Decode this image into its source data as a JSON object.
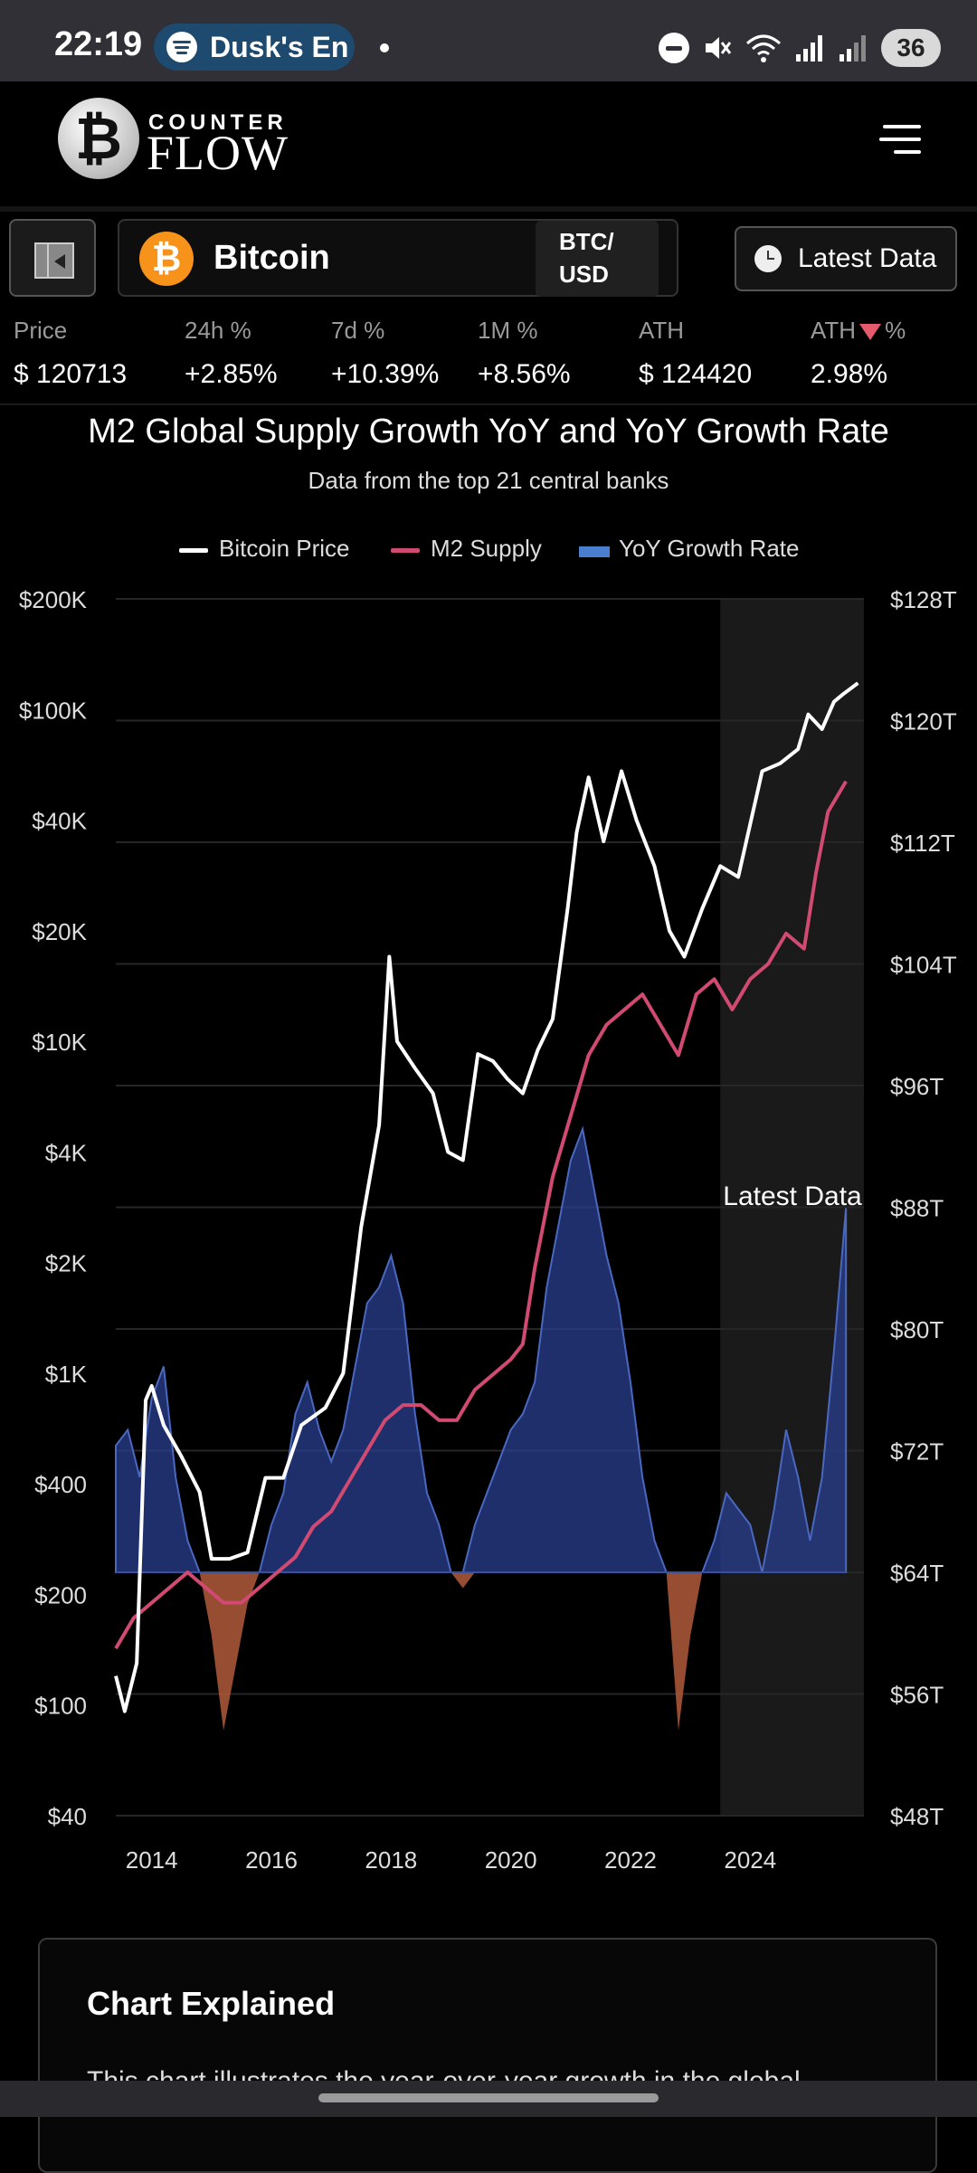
{
  "status_bar": {
    "time": "22:19",
    "media_title": "Dusk's En",
    "battery": "36"
  },
  "header": {
    "logo_top": "COUNTER",
    "logo_bottom": "FLOW",
    "logo_coin_symbol": "₿"
  },
  "toolbar": {
    "asset_symbol": "₿",
    "asset_name": "Bitcoin",
    "pair_line1": "BTC/",
    "pair_line2": "USD",
    "latest_button": "Latest Data"
  },
  "stats": [
    {
      "label": "Price",
      "value": "$ 120713"
    },
    {
      "label": "24h %",
      "value": "+2.85%"
    },
    {
      "label": "7d %",
      "value": "+10.39%"
    },
    {
      "label": "1M %",
      "value": "+8.56%"
    },
    {
      "label": "ATH",
      "value": "$ 124420"
    },
    {
      "label_prefix": "ATH",
      "label_suffix": "%",
      "value": "2.98%"
    }
  ],
  "colors": {
    "bitcoin_line": "#ffffff",
    "m2_line": "#d04a72",
    "growth_positive": "#2a3f8f",
    "growth_negative": "#b05a3a",
    "latest_shade": "#1a1a1a",
    "bitcoin_orange": "#f7931a"
  },
  "chart_data": {
    "type": "line",
    "title": "M2 Global Supply Growth YoY and YoY Growth Rate",
    "subtitle": "Data from the top 21 central banks",
    "legend": [
      "Bitcoin Price",
      "M2 Supply",
      "YoY Growth Rate"
    ],
    "annotation": "Latest Data",
    "x_ticks": [
      "2014",
      "2016",
      "2018",
      "2020",
      "2022",
      "2024"
    ],
    "xlim": [
      2013.4,
      2025.9
    ],
    "left_axis": {
      "scale": "log",
      "ticks": [
        "$200K",
        "$100K",
        "$40K",
        "$20K",
        "$10K",
        "$4K",
        "$2K",
        "$1K",
        "$400",
        "$200",
        "$100",
        "$40"
      ]
    },
    "right_axis": {
      "ticks": [
        "$128T",
        "$120T",
        "$112T",
        "$104T",
        "$96T",
        "$88T",
        "$80T",
        "$72T",
        "$64T",
        "$56T",
        "$48T"
      ],
      "ylim": [
        48,
        128
      ]
    },
    "latest_data_range": [
      2023.5,
      2025.9
    ],
    "series": [
      {
        "name": "Bitcoin Price",
        "x": [
          2013.4,
          2013.55,
          2013.75,
          2013.9,
          2014.0,
          2014.2,
          2014.5,
          2014.8,
          2015.0,
          2015.3,
          2015.6,
          2015.9,
          2016.2,
          2016.5,
          2016.9,
          2017.2,
          2017.5,
          2017.8,
          2017.97,
          2018.1,
          2018.4,
          2018.7,
          2018.95,
          2019.2,
          2019.45,
          2019.7,
          2019.95,
          2020.2,
          2020.45,
          2020.7,
          2020.95,
          2021.1,
          2021.3,
          2021.55,
          2021.85,
          2022.1,
          2022.4,
          2022.65,
          2022.9,
          2023.2,
          2023.5,
          2023.8,
          2024.2,
          2024.5,
          2024.8,
          2024.97,
          2025.2,
          2025.4,
          2025.55,
          2025.8
        ],
        "values": [
          120,
          95,
          130,
          800,
          900,
          650,
          500,
          380,
          250,
          250,
          260,
          420,
          420,
          650,
          750,
          1000,
          2500,
          5000,
          17000,
          10000,
          8000,
          6500,
          4000,
          3800,
          9000,
          8500,
          7300,
          6500,
          9300,
          11500,
          23000,
          37000,
          57000,
          35000,
          60000,
          40000,
          30000,
          20000,
          17000,
          23000,
          30000,
          28000,
          60000,
          64000,
          72000,
          96000,
          85000,
          105000,
          110000,
          118000
        ]
      },
      {
        "name": "M2 Supply",
        "x": [
          2013.4,
          2013.7,
          2014.0,
          2014.3,
          2014.6,
          2014.9,
          2015.2,
          2015.5,
          2015.8,
          2016.1,
          2016.4,
          2016.7,
          2017.0,
          2017.3,
          2017.6,
          2017.9,
          2018.2,
          2018.5,
          2018.8,
          2019.1,
          2019.4,
          2019.7,
          2020.0,
          2020.2,
          2020.4,
          2020.7,
          2021.0,
          2021.3,
          2021.6,
          2021.9,
          2022.2,
          2022.5,
          2022.8,
          2023.1,
          2023.4,
          2023.7,
          2024.0,
          2024.3,
          2024.6,
          2024.9,
          2025.1,
          2025.3,
          2025.6
        ],
        "values": [
          59,
          61,
          62,
          63,
          64,
          63,
          62,
          62,
          63,
          64,
          65,
          67,
          68,
          70,
          72,
          74,
          75,
          75,
          74,
          74,
          76,
          77,
          78,
          79,
          84,
          90,
          94,
          98,
          100,
          101,
          102,
          100,
          98,
          102,
          103,
          101,
          103,
          104,
          106,
          105,
          110,
          114,
          116
        ]
      },
      {
        "name": "YoY Growth Rate",
        "x": [
          2013.4,
          2013.6,
          2013.8,
          2014.0,
          2014.2,
          2014.4,
          2014.6,
          2014.8,
          2015.0,
          2015.2,
          2015.4,
          2015.6,
          2015.8,
          2016.0,
          2016.2,
          2016.4,
          2016.6,
          2016.8,
          2017.0,
          2017.2,
          2017.4,
          2017.6,
          2017.8,
          2018.0,
          2018.2,
          2018.4,
          2018.6,
          2018.8,
          2019.0,
          2019.2,
          2019.4,
          2019.6,
          2019.8,
          2020.0,
          2020.2,
          2020.4,
          2020.6,
          2020.8,
          2021.0,
          2021.2,
          2021.4,
          2021.6,
          2021.8,
          2022.0,
          2022.2,
          2022.4,
          2022.6,
          2022.8,
          2023.0,
          2023.2,
          2023.4,
          2023.6,
          2023.8,
          2024.0,
          2024.2,
          2024.4,
          2024.6,
          2024.8,
          2025.0,
          2025.2,
          2025.4,
          2025.6
        ],
        "values": [
          8,
          9,
          6,
          11,
          13,
          6,
          2,
          0,
          -4,
          -10,
          -6,
          -2,
          0,
          3,
          5,
          10,
          12,
          9,
          7,
          9,
          13,
          17,
          18,
          20,
          17,
          10,
          5,
          3,
          0,
          -1,
          3,
          5,
          7,
          9,
          10,
          12,
          18,
          22,
          26,
          28,
          24,
          20,
          17,
          12,
          6,
          2,
          0,
          -10,
          -4,
          0,
          2,
          5,
          4,
          3,
          0,
          4,
          9,
          6,
          2,
          6,
          14,
          23
        ]
      }
    ]
  },
  "card": {
    "title": "Chart Explained",
    "text": "This chart illustrates the year-over-year growth in the global"
  }
}
